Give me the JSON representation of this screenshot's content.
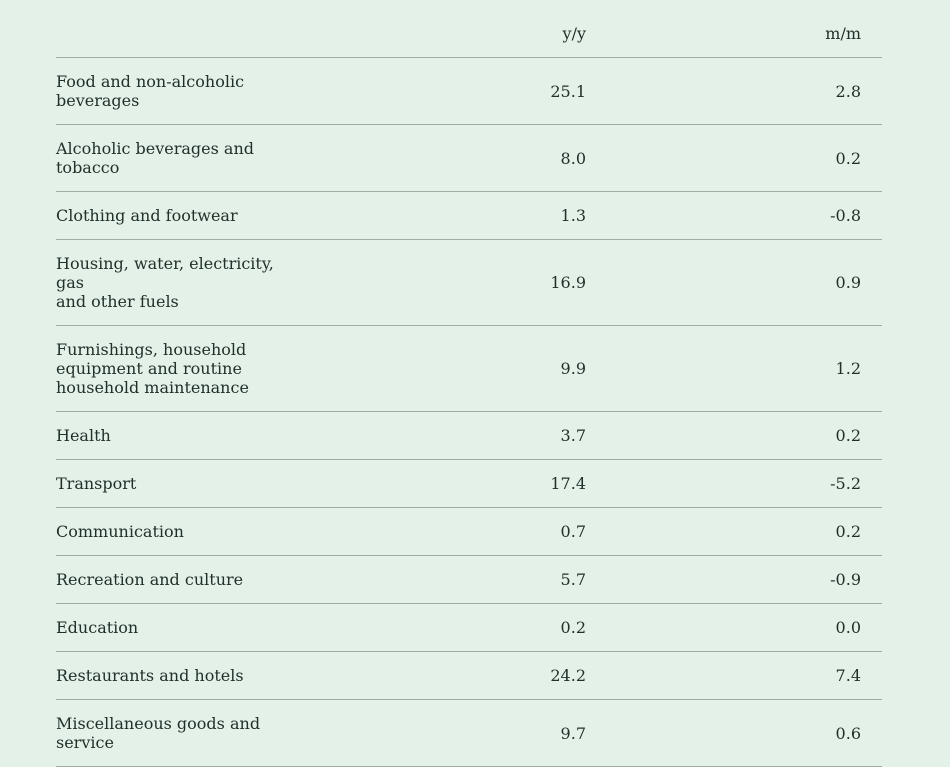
{
  "colors": {
    "background": "#e4f1e9",
    "text": "#22302a",
    "divider": "#a1aca4"
  },
  "chart_data": {
    "type": "table",
    "columns": [
      "",
      "y/y",
      "m/m"
    ],
    "rows": [
      {
        "category": "Food and non-alcoholic\nbeverages",
        "yy": "25.1",
        "mm": "2.8"
      },
      {
        "category": "Alcoholic beverages and tobacco",
        "yy": "8.0",
        "mm": "0.2"
      },
      {
        "category": "Clothing and footwear",
        "yy": "1.3",
        "mm": "-0.8"
      },
      {
        "category": "Housing, water, electricity, gas\nand other fuels",
        "yy": "16.9",
        "mm": "0.9"
      },
      {
        "category": "Furnishings, household\nequipment and routine\nhousehold maintenance",
        "yy": "9.9",
        "mm": "1.2"
      },
      {
        "category": "Health",
        "yy": "3.7",
        "mm": "0.2"
      },
      {
        "category": "Transport",
        "yy": "17.4",
        "mm": "-5.2"
      },
      {
        "category": "Communication",
        "yy": "0.7",
        "mm": "0.2"
      },
      {
        "category": "Recreation and culture",
        "yy": "5.7",
        "mm": "-0.9"
      },
      {
        "category": "Education",
        "yy": "0.2",
        "mm": "0.0"
      },
      {
        "category": "Restaurants and hotels",
        "yy": "24.2",
        "mm": "7.4"
      },
      {
        "category": "Miscellaneous goods and service",
        "yy": "9.7",
        "mm": "0.6"
      }
    ]
  }
}
